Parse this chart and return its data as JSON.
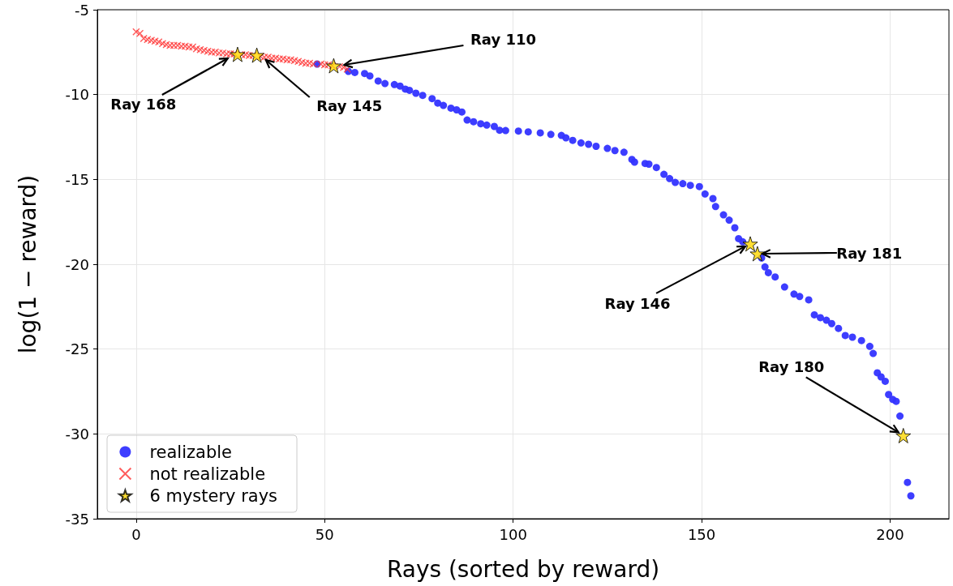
{
  "chart_data": {
    "type": "scatter",
    "xlabel": "Rays (sorted by reward)",
    "ylabel": "log(1 − reward)",
    "xlim": [
      -10.3,
      215.6
    ],
    "xticks": [
      0,
      50,
      100,
      150,
      200
    ],
    "ylim": [
      -35,
      -5
    ],
    "yticks": [
      -35,
      -30,
      -25,
      -20,
      -15,
      -10,
      -5
    ],
    "grid": true,
    "legend": "bottom left",
    "series": [
      {
        "name": "realizable",
        "color": "#3333ff",
        "marker": "circle",
        "x": [
          48,
          56.3,
          58,
          60.6,
          62,
          64.2,
          66,
          68.5,
          70,
          71.4,
          72.5,
          74.2,
          76,
          78.5,
          80,
          81.5,
          83.5,
          85,
          86.4,
          87.8,
          89.5,
          91.4,
          93,
          95,
          96.4,
          98,
          101.4,
          104,
          107.2,
          110,
          112.8,
          114,
          115.8,
          118,
          120,
          122,
          125,
          127,
          129.4,
          131.5,
          132.2,
          135,
          136,
          138,
          140,
          141.5,
          143,
          145,
          147,
          149.4,
          150.9,
          153,
          153.7,
          155.8,
          157.3,
          158.8,
          159.8,
          160.9,
          165.9,
          166.8,
          167.7,
          169.5,
          172,
          174.5,
          176,
          178.4,
          179.9,
          181.5,
          183.1,
          184.5,
          186.3,
          188.1,
          190,
          192.4,
          194.6,
          195.5,
          196.6,
          197.6,
          198.7,
          199.6,
          200.7,
          201.6,
          202.6,
          204.6,
          205.5
        ],
        "values": [
          -8.2,
          -8.63,
          -8.7,
          -8.76,
          -8.9,
          -9.2,
          -9.35,
          -9.41,
          -9.5,
          -9.68,
          -9.75,
          -9.92,
          -10.05,
          -10.24,
          -10.5,
          -10.64,
          -10.8,
          -10.9,
          -11.03,
          -11.5,
          -11.6,
          -11.72,
          -11.8,
          -11.88,
          -12.1,
          -12.12,
          -12.15,
          -12.2,
          -12.26,
          -12.35,
          -12.41,
          -12.55,
          -12.7,
          -12.85,
          -12.93,
          -13.05,
          -13.17,
          -13.3,
          -13.4,
          -13.82,
          -13.98,
          -14.06,
          -14.1,
          -14.3,
          -14.7,
          -14.95,
          -15.18,
          -15.25,
          -15.35,
          -15.42,
          -15.86,
          -16.13,
          -16.6,
          -17.09,
          -17.4,
          -17.85,
          -18.49,
          -18.68,
          -19.63,
          -20.16,
          -20.5,
          -20.75,
          -21.34,
          -21.76,
          -21.9,
          -22.1,
          -22.98,
          -23.15,
          -23.3,
          -23.5,
          -23.78,
          -24.2,
          -24.3,
          -24.5,
          -24.84,
          -25.26,
          -26.4,
          -26.64,
          -26.9,
          -27.68,
          -27.97,
          -28.08,
          -28.95,
          -32.86,
          -33.65
        ]
      },
      {
        "name": "not realizable",
        "color": "#ff3333",
        "marker": "cross",
        "x": [
          0,
          1,
          2,
          3,
          4,
          5,
          6,
          7,
          8,
          9,
          10,
          11,
          12,
          13,
          14,
          15,
          16,
          17,
          18,
          19,
          20,
          21,
          22,
          23,
          24,
          25,
          26,
          28,
          29,
          30,
          31,
          33,
          34,
          35,
          36,
          37,
          38,
          39,
          40,
          41,
          42,
          43,
          44,
          45,
          46,
          47,
          49,
          50,
          51,
          52,
          54,
          55,
          56
        ],
        "values": [
          -6.3,
          -6.4,
          -6.7,
          -6.75,
          -6.8,
          -6.85,
          -6.9,
          -7.0,
          -7.05,
          -7.1,
          -7.1,
          -7.1,
          -7.15,
          -7.15,
          -7.2,
          -7.2,
          -7.3,
          -7.35,
          -7.4,
          -7.45,
          -7.5,
          -7.5,
          -7.55,
          -7.55,
          -7.6,
          -7.6,
          -7.6,
          -7.65,
          -7.65,
          -7.7,
          -7.7,
          -7.75,
          -7.8,
          -7.8,
          -7.85,
          -7.85,
          -7.9,
          -7.9,
          -7.95,
          -7.95,
          -8.0,
          -8.05,
          -8.1,
          -8.15,
          -8.15,
          -8.2,
          -8.2,
          -8.25,
          -8.25,
          -8.3,
          -8.35,
          -8.4,
          -8.5
        ]
      },
      {
        "name": "6 mystery rays",
        "color": "#ffd700",
        "marker": "star",
        "x": [
          26.9,
          32,
          52.4,
          162.9,
          164.8,
          203.5
        ],
        "values": [
          -7.63,
          -7.68,
          -8.3,
          -18.8,
          -19.38,
          -30.1
        ]
      }
    ],
    "annotations": [
      {
        "text": "Ray 168",
        "x": 24.3,
        "y": -7.87
      },
      {
        "text": "Ray 145",
        "x": 34.4,
        "y": -7.96
      },
      {
        "text": "Ray 110",
        "x": 55.2,
        "y": -8.25
      },
      {
        "text": "Ray 146",
        "x": 162.9,
        "y": -18.8
      },
      {
        "text": "Ray 181",
        "x": 164.8,
        "y": -19.38
      },
      {
        "text": "Ray 180",
        "x": 203.5,
        "y": -30.1
      }
    ]
  }
}
